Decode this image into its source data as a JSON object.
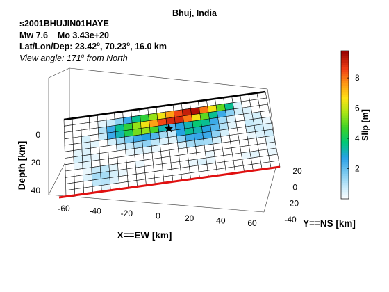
{
  "header": {
    "title": "Bhuj, India",
    "event_id": "s2001BHUJIN01HAYE",
    "magnitude": "Mw 7.6",
    "moment": "Mo 3.43e+20",
    "location_prefix": "Lat/Lon/Dep: ",
    "lat": "23.42",
    "lon": "70.23",
    "depth_text": "16.0 km",
    "degree_mark": "o",
    "view_prefix": "View angle: ",
    "view_angle": "171",
    "view_suffix": " from North"
  },
  "chart_data": {
    "type": "heatmap",
    "xlabel": "X==EW [km]",
    "ylabel": "Depth [km]",
    "zlabel": "Y==NS [km]",
    "colorbar_label": "Slip [m]",
    "x_ticks": [
      -60,
      -40,
      -20,
      0,
      20,
      40,
      60
    ],
    "depth_ticks": [
      0,
      20,
      40
    ],
    "y_ticks": [
      20,
      0,
      -20,
      -40
    ],
    "colorbar_ticks": [
      2,
      4,
      6,
      8
    ],
    "colorbar_range": [
      0,
      9.8
    ],
    "grid_cols": 24,
    "grid_rows": 12,
    "hypocenter": {
      "col": 12.2,
      "row": 3.6
    },
    "slip": [
      [
        0,
        0,
        0,
        0,
        0,
        0,
        0,
        0,
        0,
        0,
        0,
        0,
        0,
        0,
        0,
        0,
        0,
        0,
        0,
        0,
        0,
        0,
        0,
        0
      ],
      [
        0,
        0,
        0,
        0,
        0.4,
        0.8,
        1.5,
        2.5,
        3.5,
        4.5,
        5.5,
        6.5,
        7.5,
        8.5,
        9.2,
        9.5,
        8.0,
        6.5,
        5.0,
        3.5,
        0.5,
        0,
        0,
        0
      ],
      [
        0,
        0,
        0,
        0,
        1.0,
        2.5,
        3.5,
        4.5,
        5.5,
        6.5,
        7.5,
        8.5,
        9.0,
        9.0,
        8.0,
        6.5,
        5.0,
        3.5,
        2.5,
        1.5,
        0.6,
        0.5,
        0,
        0
      ],
      [
        0,
        0,
        0.6,
        0,
        0.8,
        2.5,
        3.2,
        4.2,
        5.2,
        5.5,
        4.8,
        3.2,
        2.2,
        2.8,
        3.2,
        3.8,
        3.5,
        2.5,
        1.2,
        0.5,
        0,
        0.5,
        0.6,
        0
      ],
      [
        0,
        0,
        0.5,
        0.4,
        0,
        0.6,
        1.2,
        1.8,
        2.5,
        2.8,
        2.2,
        1.2,
        0.8,
        2.8,
        3.5,
        3.2,
        2.8,
        2.2,
        1.0,
        0.4,
        0,
        0.8,
        0.6,
        0.3
      ],
      [
        0,
        0.4,
        0.5,
        0,
        0,
        0,
        0.5,
        0.8,
        1.2,
        1.5,
        0.9,
        0.5,
        0.4,
        1.5,
        2.5,
        2.6,
        2.5,
        1.5,
        0.6,
        0,
        0,
        0.6,
        0.7,
        0.5
      ],
      [
        0,
        0.6,
        0.5,
        0.3,
        0,
        0,
        0,
        0.3,
        0.5,
        0.4,
        0.3,
        0,
        0,
        0.5,
        1.2,
        1.3,
        1.2,
        0.6,
        0,
        0,
        0,
        0.3,
        0.5,
        0.7
      ],
      [
        0,
        0.3,
        0.4,
        0,
        0,
        0,
        0,
        0,
        0,
        0,
        0,
        0,
        0,
        0,
        0,
        0,
        0,
        0,
        0,
        0,
        0,
        0,
        0,
        0.4
      ],
      [
        0,
        0,
        0.3,
        0.8,
        0.9,
        0.4,
        0,
        0,
        0.3,
        0,
        0,
        0,
        0,
        0,
        0,
        0,
        0.3,
        0,
        0,
        0,
        0,
        0,
        0,
        0.3
      ],
      [
        0,
        0,
        0.5,
        1.2,
        1.2,
        0.6,
        0.3,
        0,
        0,
        0,
        0,
        0,
        0,
        0,
        0.3,
        0.5,
        0.3,
        0,
        0,
        0,
        0.3,
        0.4,
        0,
        0.3
      ],
      [
        0,
        0,
        0,
        0.9,
        1.0,
        0.5,
        0,
        0,
        0,
        0,
        0,
        0,
        0,
        0,
        0,
        0,
        0,
        0,
        0,
        0,
        0,
        0,
        0,
        0
      ],
      [
        0,
        0,
        0,
        0,
        0.4,
        0,
        0,
        0,
        0,
        0,
        0,
        0,
        0,
        0,
        0,
        0,
        0,
        0,
        0,
        0,
        0,
        0,
        0,
        0
      ]
    ]
  }
}
